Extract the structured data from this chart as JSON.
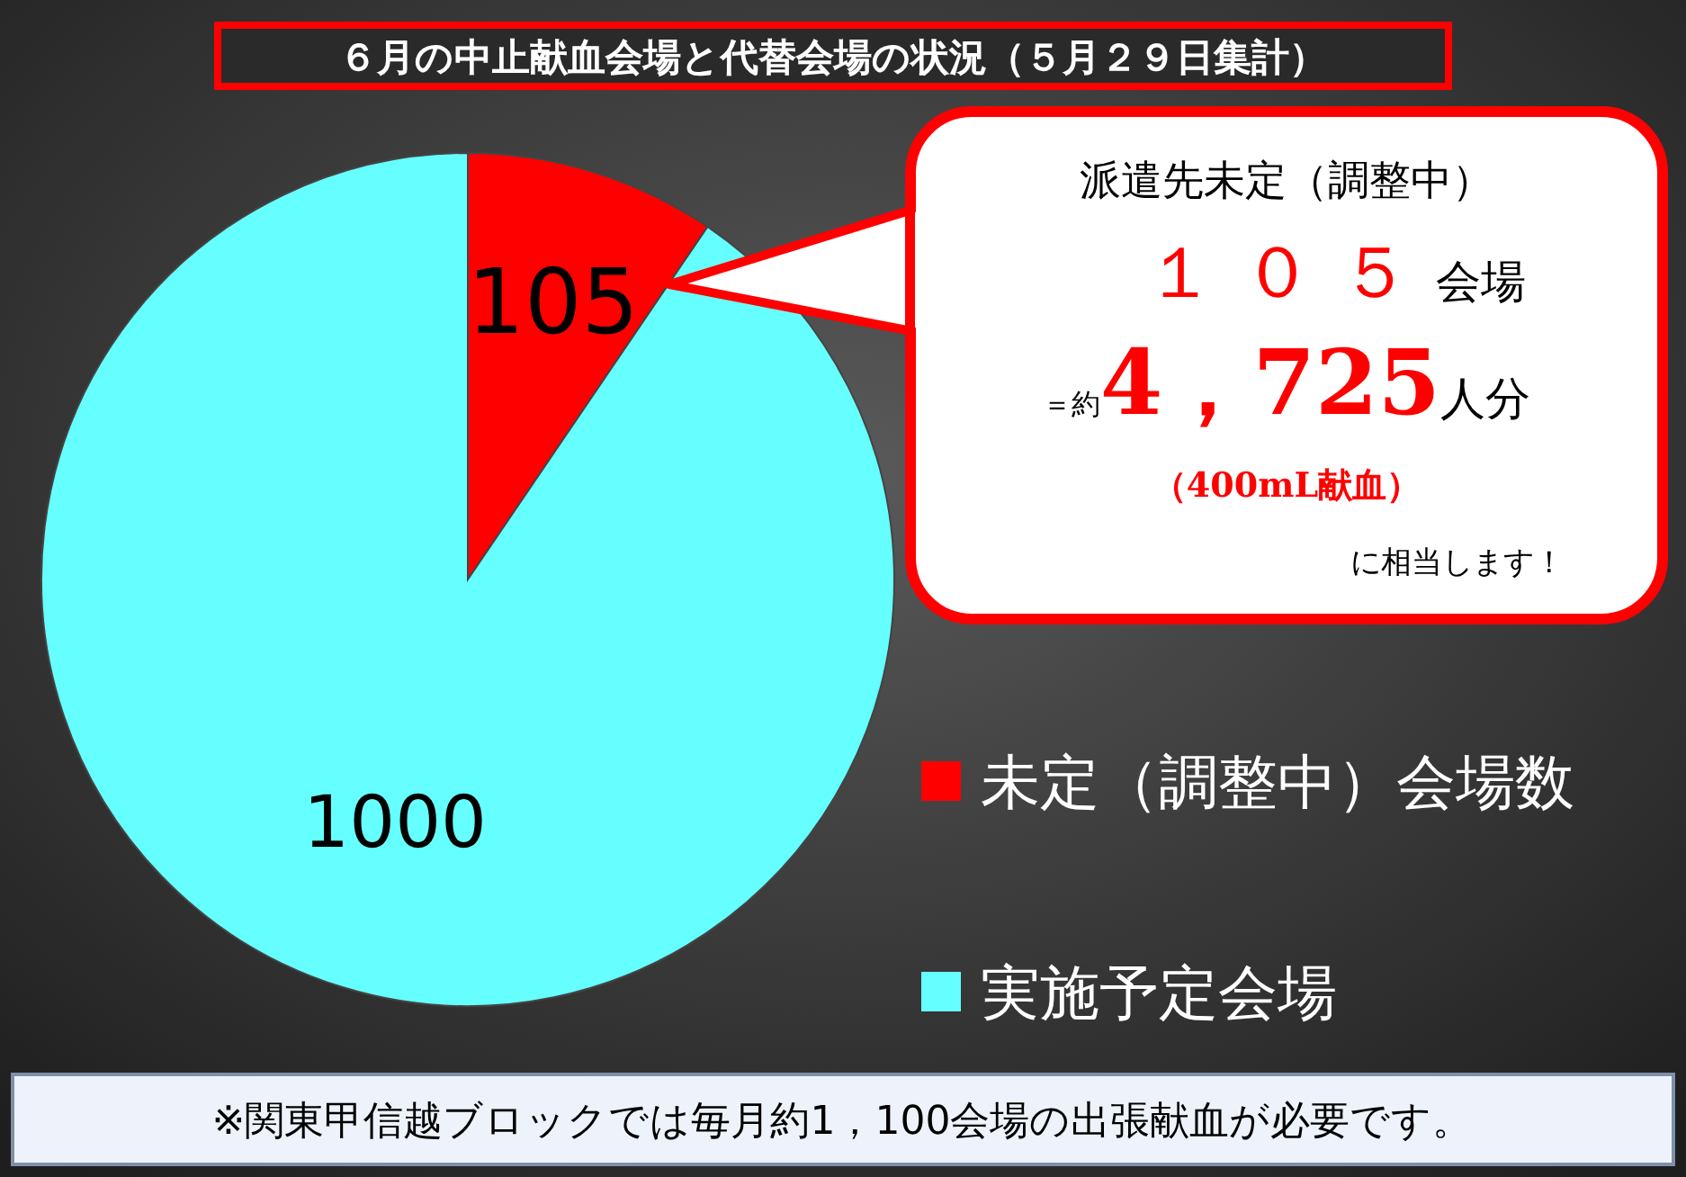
{
  "chart_data": {
    "type": "pie",
    "title": "６月の中止献血会場と代替会場の状況（５月２９日集計）",
    "categories": [
      "未定（調整中）会場数",
      "実施予定会場"
    ],
    "values": [
      105,
      1000
    ],
    "colors": [
      "#ff0000",
      "#66ffff"
    ],
    "data_labels": true,
    "legend": "right",
    "annotations": [
      "派遣先未定（調整中）",
      "１０５会場",
      "＝約4，725人分",
      "（400mL献血）",
      "に相当します！",
      "※関東甲信越ブロックでは毎月約1，100会場の出張献血が必要です。"
    ]
  }
}
